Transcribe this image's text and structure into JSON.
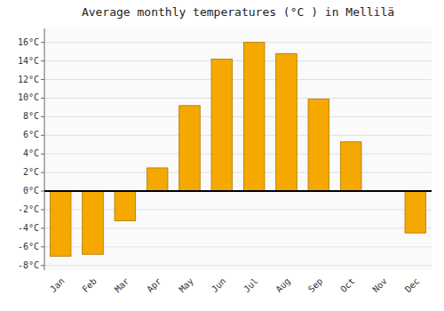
{
  "chart_data": {
    "type": "bar",
    "title": "Average monthly temperatures (°C ) in Mellilä",
    "categories": [
      "Jan",
      "Feb",
      "Mar",
      "Apr",
      "May",
      "Jun",
      "Jul",
      "Aug",
      "Sep",
      "Oct",
      "Nov",
      "Dec"
    ],
    "values": [
      -7.0,
      -6.8,
      -3.2,
      2.5,
      9.2,
      14.2,
      16.0,
      14.8,
      9.9,
      5.3,
      0.0,
      -4.5
    ],
    "color": "#F5A800",
    "ylim": [
      -8.5,
      17.5
    ],
    "yticks": [
      {
        "value": -8,
        "label": "-8°C"
      },
      {
        "value": -6,
        "label": "-6°C"
      },
      {
        "value": -4,
        "label": "-4°C"
      },
      {
        "value": -2,
        "label": "-2°C"
      },
      {
        "value": 0,
        "label": "0°C"
      },
      {
        "value": 2,
        "label": "2°C"
      },
      {
        "value": 4,
        "label": "4°C"
      },
      {
        "value": 6,
        "label": "6°C"
      },
      {
        "value": 8,
        "label": "8°C"
      },
      {
        "value": 10,
        "label": "10°C"
      },
      {
        "value": 12,
        "label": "12°C"
      },
      {
        "value": 14,
        "label": "14°C"
      },
      {
        "value": 16,
        "label": "16°C"
      }
    ],
    "grid": true
  }
}
